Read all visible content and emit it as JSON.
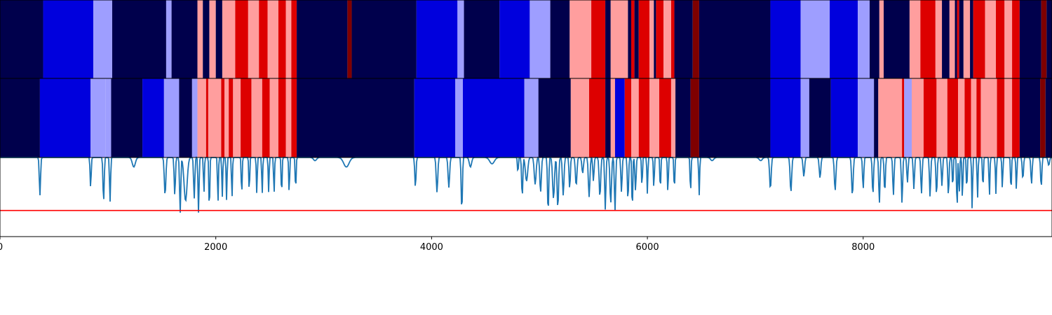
{
  "chart_data": [
    {
      "type": "heatmap",
      "name": "state-strip-top",
      "colors": {
        "0": "#00004c",
        "1": "#0000dd",
        "2": "#9e9eff",
        "3": "#ff9e9e",
        "4": "#dd0000",
        "5": "#7f0000"
      },
      "segments": [
        [
          0,
          400,
          0
        ],
        [
          400,
          865,
          1
        ],
        [
          865,
          1040,
          2
        ],
        [
          1040,
          1540,
          0
        ],
        [
          1540,
          1590,
          2
        ],
        [
          1590,
          1830,
          0
        ],
        [
          1830,
          1880,
          3
        ],
        [
          1880,
          1940,
          0
        ],
        [
          1940,
          2000,
          3
        ],
        [
          2000,
          2060,
          0
        ],
        [
          2060,
          2180,
          3
        ],
        [
          2180,
          2300,
          4
        ],
        [
          2300,
          2400,
          3
        ],
        [
          2400,
          2480,
          4
        ],
        [
          2480,
          2580,
          3
        ],
        [
          2580,
          2650,
          4
        ],
        [
          2650,
          2700,
          3
        ],
        [
          2700,
          2750,
          4
        ],
        [
          2750,
          3220,
          0
        ],
        [
          3220,
          3260,
          5
        ],
        [
          3260,
          3860,
          0
        ],
        [
          3860,
          4240,
          1
        ],
        [
          4240,
          4300,
          2
        ],
        [
          4300,
          4630,
          0
        ],
        [
          4630,
          4910,
          1
        ],
        [
          4910,
          5100,
          2
        ],
        [
          5100,
          5280,
          0
        ],
        [
          5280,
          5480,
          3
        ],
        [
          5480,
          5610,
          4
        ],
        [
          5610,
          5660,
          0
        ],
        [
          5660,
          5820,
          3
        ],
        [
          5820,
          5850,
          0
        ],
        [
          5850,
          5880,
          4
        ],
        [
          5880,
          5920,
          0
        ],
        [
          5920,
          6020,
          4
        ],
        [
          6020,
          6060,
          3
        ],
        [
          6060,
          6080,
          0
        ],
        [
          6080,
          6150,
          4
        ],
        [
          6150,
          6220,
          3
        ],
        [
          6220,
          6250,
          4
        ],
        [
          6250,
          6420,
          0
        ],
        [
          6420,
          6480,
          5
        ],
        [
          6480,
          7140,
          0
        ],
        [
          7140,
          7420,
          1
        ],
        [
          7420,
          7690,
          2
        ],
        [
          7690,
          7950,
          1
        ],
        [
          7950,
          8060,
          2
        ],
        [
          8060,
          8150,
          0
        ],
        [
          8150,
          8190,
          3
        ],
        [
          8190,
          8430,
          0
        ],
        [
          8430,
          8530,
          3
        ],
        [
          8530,
          8670,
          4
        ],
        [
          8670,
          8730,
          3
        ],
        [
          8730,
          8800,
          0
        ],
        [
          8800,
          8850,
          3
        ],
        [
          8850,
          8870,
          0
        ],
        [
          8870,
          8890,
          4
        ],
        [
          8890,
          8930,
          0
        ],
        [
          8930,
          8990,
          3
        ],
        [
          8990,
          9020,
          0
        ],
        [
          9020,
          9130,
          4
        ],
        [
          9130,
          9230,
          3
        ],
        [
          9230,
          9310,
          4
        ],
        [
          9310,
          9380,
          3
        ],
        [
          9380,
          9450,
          4
        ],
        [
          9450,
          9650,
          0
        ],
        [
          9650,
          9700,
          5
        ],
        [
          9700,
          9750,
          0
        ]
      ]
    },
    {
      "type": "heatmap",
      "name": "state-strip-bottom",
      "colors": {
        "0": "#00004c",
        "1": "#0000dd",
        "2": "#9e9eff",
        "3": "#ff9e9e",
        "4": "#dd0000",
        "5": "#7f0000"
      },
      "segments": [
        [
          0,
          370,
          0
        ],
        [
          370,
          840,
          1
        ],
        [
          840,
          980,
          2
        ],
        [
          980,
          1030,
          2
        ],
        [
          1030,
          1320,
          0
        ],
        [
          1320,
          1520,
          1
        ],
        [
          1520,
          1660,
          2
        ],
        [
          1660,
          1780,
          0
        ],
        [
          1780,
          1830,
          2
        ],
        [
          1830,
          1910,
          3
        ],
        [
          1910,
          1930,
          4
        ],
        [
          1930,
          2050,
          3
        ],
        [
          2050,
          2080,
          4
        ],
        [
          2080,
          2120,
          3
        ],
        [
          2120,
          2160,
          4
        ],
        [
          2160,
          2230,
          3
        ],
        [
          2230,
          2330,
          4
        ],
        [
          2330,
          2430,
          3
        ],
        [
          2430,
          2500,
          4
        ],
        [
          2500,
          2580,
          3
        ],
        [
          2580,
          2650,
          4
        ],
        [
          2650,
          2700,
          3
        ],
        [
          2700,
          2750,
          4
        ],
        [
          2750,
          3840,
          0
        ],
        [
          3840,
          4220,
          1
        ],
        [
          4220,
          4290,
          2
        ],
        [
          4290,
          4860,
          1
        ],
        [
          4860,
          4990,
          2
        ],
        [
          4990,
          5290,
          0
        ],
        [
          5290,
          5460,
          3
        ],
        [
          5460,
          5610,
          4
        ],
        [
          5610,
          5660,
          0
        ],
        [
          5660,
          5700,
          3
        ],
        [
          5700,
          5790,
          1
        ],
        [
          5790,
          5850,
          4
        ],
        [
          5850,
          5920,
          3
        ],
        [
          5920,
          6020,
          4
        ],
        [
          6020,
          6110,
          3
        ],
        [
          6110,
          6220,
          4
        ],
        [
          6220,
          6260,
          3
        ],
        [
          6260,
          6400,
          0
        ],
        [
          6400,
          6480,
          5
        ],
        [
          6480,
          7140,
          0
        ],
        [
          7140,
          7420,
          1
        ],
        [
          7420,
          7500,
          2
        ],
        [
          7500,
          7700,
          0
        ],
        [
          7700,
          7950,
          1
        ],
        [
          7950,
          8100,
          2
        ],
        [
          8100,
          8140,
          0
        ],
        [
          8140,
          8360,
          3
        ],
        [
          8360,
          8380,
          4
        ],
        [
          8380,
          8450,
          2
        ],
        [
          8450,
          8560,
          3
        ],
        [
          8560,
          8680,
          4
        ],
        [
          8680,
          8780,
          3
        ],
        [
          8780,
          8880,
          4
        ],
        [
          8880,
          8940,
          3
        ],
        [
          8940,
          9000,
          4
        ],
        [
          9000,
          9050,
          3
        ],
        [
          9050,
          9090,
          4
        ],
        [
          9090,
          9240,
          3
        ],
        [
          9240,
          9310,
          4
        ],
        [
          9310,
          9380,
          3
        ],
        [
          9380,
          9450,
          4
        ],
        [
          9450,
          9640,
          0
        ],
        [
          9640,
          9690,
          5
        ],
        [
          9690,
          9750,
          0
        ]
      ]
    },
    {
      "type": "line",
      "name": "signal-line",
      "color": "#1f77b4",
      "threshold": 0.03,
      "threshold_color": "#ff0000",
      "ylim": [
        -0.3,
        0.7
      ],
      "baseline": 0.7,
      "dips": [
        [
          370,
          0.22,
          8
        ],
        [
          840,
          0.32,
          7
        ],
        [
          960,
          0.14,
          8
        ],
        [
          1020,
          0.14,
          7
        ],
        [
          1240,
          0.58,
          20
        ],
        [
          1530,
          0.22,
          10
        ],
        [
          1620,
          0.22,
          8
        ],
        [
          1670,
          0.0,
          8
        ],
        [
          1720,
          0.15,
          20
        ],
        [
          1800,
          0.18,
          8
        ],
        [
          1840,
          0.0,
          7
        ],
        [
          1890,
          0.24,
          6
        ],
        [
          1940,
          0.0,
          6
        ],
        [
          2020,
          0.12,
          6
        ],
        [
          2060,
          0.2,
          6
        ],
        [
          2100,
          0.16,
          6
        ],
        [
          2150,
          0.18,
          6
        ],
        [
          2240,
          0.22,
          6
        ],
        [
          2310,
          0.26,
          6
        ],
        [
          2380,
          0.24,
          6
        ],
        [
          2430,
          0.24,
          6
        ],
        [
          2490,
          0.26,
          6
        ],
        [
          2540,
          0.24,
          6
        ],
        [
          2610,
          0.22,
          6
        ],
        [
          2680,
          0.24,
          6
        ],
        [
          2740,
          0.28,
          6
        ],
        [
          2920,
          0.66,
          20
        ],
        [
          3210,
          0.58,
          35
        ],
        [
          3850,
          0.32,
          8
        ],
        [
          4050,
          0.26,
          10
        ],
        [
          4160,
          0.32,
          10
        ],
        [
          4280,
          0.02,
          8
        ],
        [
          4360,
          0.58,
          15
        ],
        [
          4560,
          0.62,
          30
        ],
        [
          4800,
          0.5,
          6
        ],
        [
          4840,
          0.2,
          8
        ],
        [
          4880,
          0.4,
          15
        ],
        [
          4960,
          0.36,
          12
        ],
        [
          5010,
          0.26,
          10
        ],
        [
          5080,
          0.0,
          8
        ],
        [
          5130,
          0.18,
          12
        ],
        [
          5170,
          0.06,
          10
        ],
        [
          5220,
          0.22,
          10
        ],
        [
          5280,
          0.3,
          8
        ],
        [
          5340,
          0.34,
          10
        ],
        [
          5400,
          0.5,
          10
        ],
        [
          5460,
          0.2,
          10
        ],
        [
          5500,
          0.4,
          8
        ],
        [
          5560,
          0.2,
          10
        ],
        [
          5610,
          0.04,
          8
        ],
        [
          5660,
          0.12,
          10
        ],
        [
          5700,
          0.02,
          8
        ],
        [
          5760,
          0.26,
          8
        ],
        [
          5820,
          0.16,
          8
        ],
        [
          5860,
          0.0,
          6
        ],
        [
          5890,
          0.28,
          8
        ],
        [
          5950,
          0.32,
          6
        ],
        [
          6000,
          0.24,
          6
        ],
        [
          6060,
          0.3,
          6
        ],
        [
          6120,
          0.28,
          6
        ],
        [
          6190,
          0.24,
          6
        ],
        [
          6250,
          0.28,
          6
        ],
        [
          6400,
          0.24,
          6
        ],
        [
          6480,
          0.22,
          6
        ],
        [
          6600,
          0.66,
          20
        ],
        [
          7050,
          0.66,
          20
        ],
        [
          7140,
          0.3,
          10
        ],
        [
          7330,
          0.26,
          10
        ],
        [
          7450,
          0.46,
          10
        ],
        [
          7600,
          0.44,
          10
        ],
        [
          7740,
          0.28,
          10
        ],
        [
          7900,
          0.22,
          10
        ],
        [
          8000,
          0.3,
          8
        ],
        [
          8090,
          0.22,
          8
        ],
        [
          8150,
          0.12,
          8
        ],
        [
          8200,
          0.26,
          8
        ],
        [
          8280,
          0.22,
          8
        ],
        [
          8360,
          0.12,
          8
        ],
        [
          8410,
          0.38,
          8
        ],
        [
          8470,
          0.3,
          8
        ],
        [
          8540,
          0.24,
          8
        ],
        [
          8620,
          0.2,
          8
        ],
        [
          8680,
          0.22,
          8
        ],
        [
          8730,
          0.34,
          8
        ],
        [
          8790,
          0.22,
          8
        ],
        [
          8830,
          0.3,
          6
        ],
        [
          8870,
          0.02,
          6
        ],
        [
          8890,
          0.22,
          6
        ],
        [
          8920,
          0.16,
          6
        ],
        [
          8960,
          0.28,
          6
        ],
        [
          9010,
          0.04,
          6
        ],
        [
          9060,
          0.18,
          6
        ],
        [
          9110,
          0.3,
          6
        ],
        [
          9170,
          0.2,
          6
        ],
        [
          9230,
          0.24,
          6
        ],
        [
          9290,
          0.3,
          6
        ],
        [
          9370,
          0.26,
          6
        ],
        [
          9420,
          0.28,
          6
        ],
        [
          9480,
          0.42,
          8
        ],
        [
          9560,
          0.36,
          8
        ],
        [
          9650,
          0.32,
          8
        ],
        [
          9720,
          0.6,
          10
        ]
      ]
    }
  ],
  "x_axis": {
    "xlim": [
      0,
      9750
    ],
    "ticks": [
      {
        "value": 0,
        "label": "0"
      },
      {
        "value": 2000,
        "label": "2000"
      },
      {
        "value": 4000,
        "label": "4000"
      },
      {
        "value": 6000,
        "label": "6000"
      },
      {
        "value": 8000,
        "label": "8000"
      }
    ]
  }
}
